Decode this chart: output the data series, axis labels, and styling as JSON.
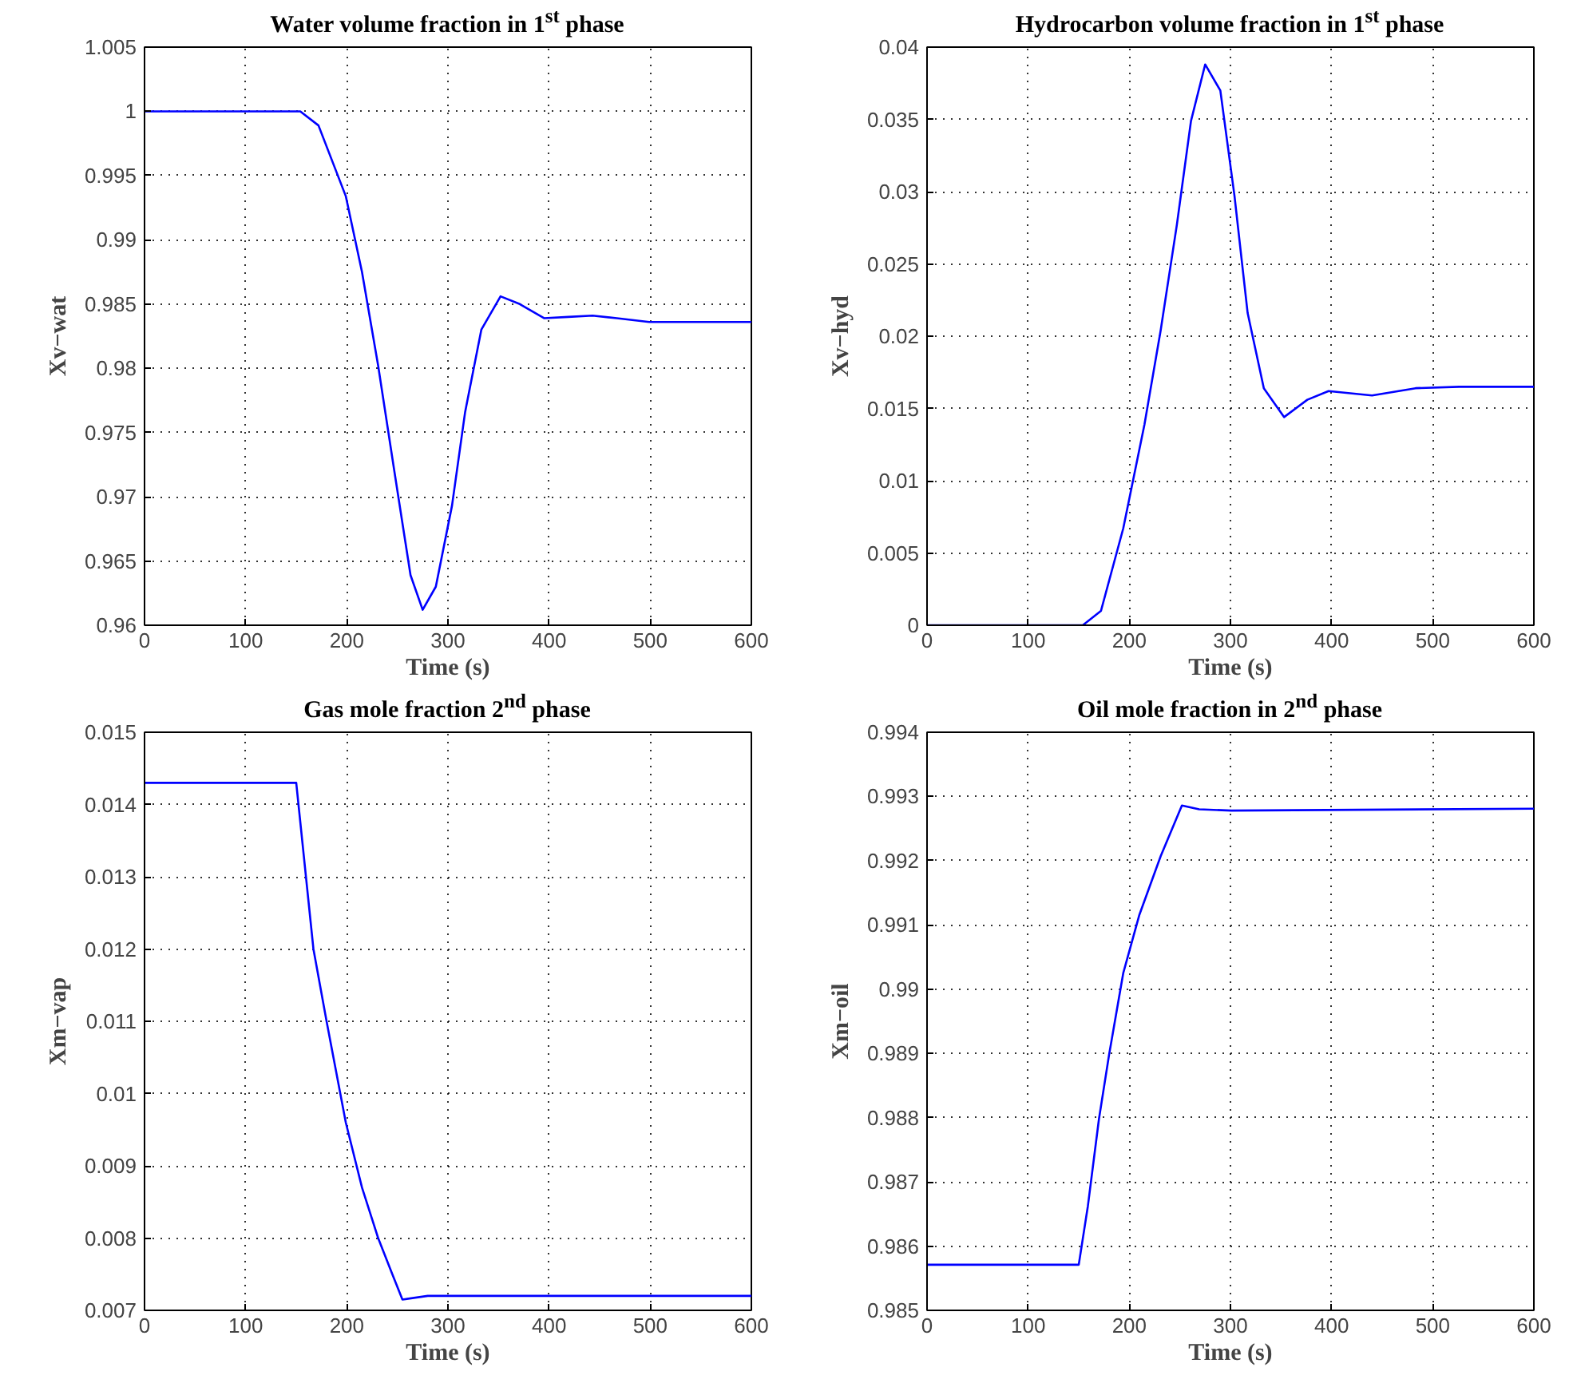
{
  "chart_data": [
    {
      "type": "line",
      "title": "Water volume fraction in 1$^{st}$ phase",
      "xlabel": "Time (s)",
      "ylabel": "Xv−wat",
      "grid": true,
      "x": [
        0,
        154,
        172,
        199,
        215,
        231,
        247,
        263,
        275,
        288,
        304,
        317,
        333,
        352,
        371,
        395,
        419,
        443,
        467,
        499,
        600
      ],
      "series": [
        {
          "color": "#0000ff",
          "values": [
            1.0,
            1.0,
            0.9989,
            0.9934,
            0.9875,
            0.9802,
            0.972,
            0.9639,
            0.9612,
            0.963,
            0.9693,
            0.9766,
            0.983,
            0.9856,
            0.985,
            0.9839,
            0.984,
            0.9841,
            0.9839,
            0.9836,
            0.9836
          ]
        }
      ],
      "xlim": [
        0,
        600
      ],
      "xticks": [
        0,
        100,
        200,
        300,
        400,
        500,
        600
      ],
      "ylim": [
        0.96,
        1.005
      ],
      "yticks": [
        0.96,
        0.965,
        0.97,
        0.975,
        0.98,
        0.985,
        0.99,
        0.995,
        1,
        1.005
      ]
    },
    {
      "type": "line",
      "title": "Hydrocarbon volume fraction in 1$^{st}$ phase",
      "xlabel": "Time (s)",
      "ylabel": "Xv−hyd",
      "grid": true,
      "x": [
        0,
        154,
        172,
        194,
        215,
        231,
        247,
        261,
        275,
        290,
        304,
        317,
        333,
        353,
        376,
        397,
        440,
        483,
        526,
        600
      ],
      "series": [
        {
          "color": "#0000ff",
          "values": [
            0,
            0,
            0.001,
            0.0067,
            0.0139,
            0.0204,
            0.0277,
            0.0349,
            0.0388,
            0.037,
            0.0297,
            0.0216,
            0.0164,
            0.0144,
            0.0156,
            0.0162,
            0.0159,
            0.0164,
            0.0165,
            0.0165
          ]
        }
      ],
      "xlim": [
        0,
        600
      ],
      "xticks": [
        0,
        100,
        200,
        300,
        400,
        500,
        600
      ],
      "ylim": [
        0,
        0.04
      ],
      "yticks": [
        0,
        0.005,
        0.01,
        0.015,
        0.02,
        0.025,
        0.03,
        0.035,
        0.04
      ]
    },
    {
      "type": "line",
      "title": "Gas mole fraction 2$^{nd}$ phase",
      "xlabel": "Time (s)",
      "ylabel": "Xm−vap",
      "grid": true,
      "x": [
        0,
        150,
        167,
        180,
        199,
        215,
        231,
        245,
        255,
        280,
        300,
        600
      ],
      "series": [
        {
          "color": "#0000ff",
          "values": [
            0.0143,
            0.0143,
            0.012,
            0.011,
            0.0096,
            0.0087,
            0.008,
            0.0075,
            0.00715,
            0.0072,
            0.0072,
            0.0072
          ]
        }
      ],
      "xlim": [
        0,
        600
      ],
      "xticks": [
        0,
        100,
        200,
        300,
        400,
        500,
        600
      ],
      "ylim": [
        0.007,
        0.015
      ],
      "yticks": [
        0.007,
        0.008,
        0.009,
        0.01,
        0.011,
        0.012,
        0.013,
        0.014,
        0.015
      ]
    },
    {
      "type": "line",
      "title": "Oil mole fraction in 2$^{nd}$ phase",
      "xlabel": "Time (s)",
      "ylabel": "Xm−oil",
      "grid": true,
      "x": [
        0,
        150,
        159,
        170,
        180,
        194,
        210,
        231,
        252,
        269,
        301,
        600
      ],
      "series": [
        {
          "color": "#0000ff",
          "values": [
            0.98571,
            0.98571,
            0.98662,
            0.98798,
            0.98898,
            0.99025,
            0.99116,
            0.99207,
            0.99286,
            0.9928,
            0.99278,
            0.99281
          ]
        }
      ],
      "xlim": [
        0,
        600
      ],
      "xticks": [
        0,
        100,
        200,
        300,
        400,
        500,
        600
      ],
      "ylim": [
        0.985,
        0.994
      ],
      "yticks": [
        0.985,
        0.986,
        0.987,
        0.988,
        0.989,
        0.99,
        0.991,
        0.992,
        0.993,
        0.994
      ]
    }
  ]
}
